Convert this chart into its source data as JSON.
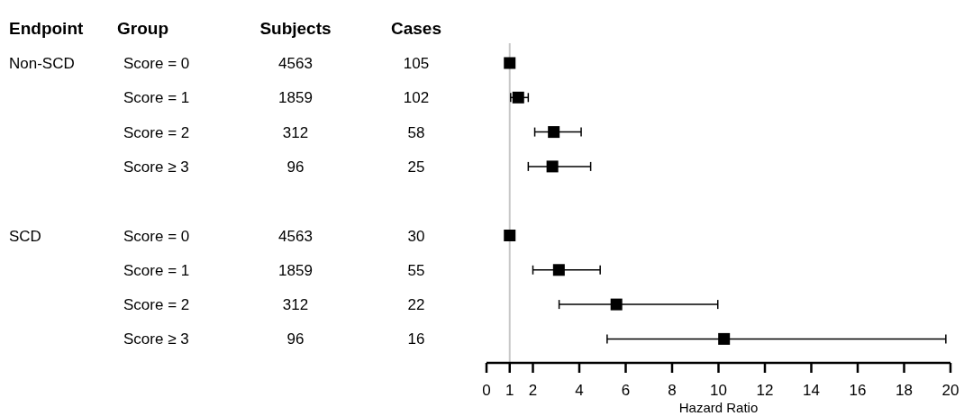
{
  "chart_data": [
    {
      "type": "other",
      "categories": [
        "Endpoint",
        "Group",
        "Subjects",
        "Cases"
      ],
      "cell_labels": [
        [
          "Non-SCD",
          "Score = 0",
          "4563",
          "105"
        ],
        [
          null,
          "Score = 1",
          "1859",
          "102"
        ],
        [
          null,
          "Score = 2",
          "312",
          "58"
        ],
        [
          null,
          "Score ≥ 3",
          "96",
          "25"
        ],
        [
          null,
          null,
          null,
          null
        ],
        [
          "SCD",
          "Score = 0",
          "4563",
          "30"
        ],
        [
          null,
          "Score = 1",
          "1859",
          "55"
        ],
        [
          null,
          "Score = 2",
          "312",
          "22"
        ],
        [
          null,
          "Score ≥ 3",
          "96",
          "16"
        ]
      ]
    },
    {
      "type": "scatter",
      "orientation": "horizontal",
      "xlabel": "Hazard Ratio",
      "categories": [
        null,
        null,
        null,
        null,
        null,
        null,
        null,
        null,
        null
      ],
      "series": [
        {
          "color": "#000000",
          "values": [
            1.0,
            1.37,
            2.9,
            2.84,
            null,
            1.0,
            3.12,
            5.6,
            10.24
          ],
          "errors": [
            null,
            [
              1.04,
              1.8
            ],
            [
              2.08,
              4.08
            ],
            [
              1.8,
              4.49
            ],
            null,
            null,
            [
              2.0,
              4.9
            ],
            [
              3.13,
              9.97
            ],
            [
              5.2,
              19.8
            ]
          ]
        }
      ],
      "marker": "square",
      "xlim": [
        0,
        20
      ],
      "xticks": [
        0,
        1,
        2,
        4,
        6,
        8,
        10,
        12,
        14,
        16,
        18,
        20
      ],
      "ref_lines": [
        {
          "axis": "x",
          "value": 1,
          "color": "#c8c8c8"
        }
      ],
      "tick_labels": "x",
      "grid": false
    }
  ]
}
